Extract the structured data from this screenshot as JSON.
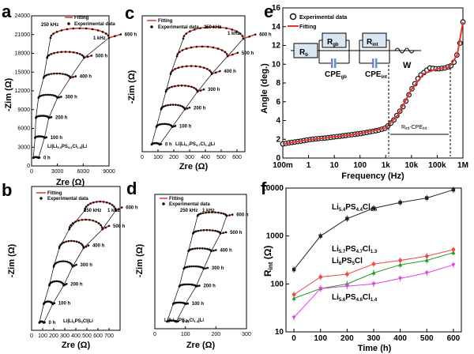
{
  "figure": {
    "panel_labels": [
      "a",
      "b",
      "c",
      "d",
      "e",
      "f"
    ]
  },
  "colors": {
    "fit": "#e8332a",
    "marker": "#111111",
    "circle_fill": "#ffffff",
    "f_black": "#222222",
    "f_red": "#f04a44",
    "f_green": "#1e9b28",
    "f_magenta": "#e23fe0"
  },
  "chart_data": [
    {
      "panel": "a",
      "type": "scatter",
      "xlabel": "Zre (Ω)",
      "ylabel": "-Zim (Ω)",
      "xlim": [
        0,
        9000
      ],
      "ylim": [
        0,
        24000
      ],
      "x_ticks": [
        "0",
        "3000",
        "6000",
        "9000"
      ],
      "y_ticks": [
        "0",
        "3000",
        "6000",
        "9000",
        "12000",
        "15000",
        "18000",
        "21000",
        "24000"
      ],
      "legend": [
        "Fitting",
        "Experimental data"
      ],
      "sample_label": "Li|Li5.4PS4.4Cl1.6|Li",
      "freq_labels": [
        "250 kHz",
        "1 kHz"
      ],
      "times": [
        "0 h",
        "100 h",
        "200 h",
        "300 h",
        "400 h",
        "500 h",
        "600 h"
      ],
      "offset_step": 3200,
      "arc_start": [
        200,
        400,
        500,
        800,
        1400,
        1800,
        2200
      ],
      "arc_diameter": [
        600,
        1100,
        1500,
        2200,
        3100,
        4300,
        6800
      ]
    },
    {
      "panel": "b",
      "type": "scatter",
      "xlabel": "Zre (Ω)",
      "ylabel": "-Zim (Ω)",
      "xlim": [
        0,
        800
      ],
      "ylim": [
        0,
        1000
      ],
      "x_ticks": [
        "0",
        "100",
        "200",
        "300",
        "400",
        "500",
        "600",
        "700"
      ],
      "y_ticks": [],
      "legend": [
        "Fitting",
        "Experimental data"
      ],
      "sample_label": "Li|Li6PS5Cl|Li",
      "freq_labels": [
        "250 kHz",
        "1 kHz"
      ],
      "times": [
        "0 h",
        "100 h",
        "200 h",
        "300 h",
        "400 h",
        "500 h",
        "600 h"
      ],
      "offset_step": 130,
      "arc_start": [
        70,
        110,
        160,
        200,
        250,
        340,
        480
      ],
      "arc_diameter": [
        40,
        80,
        130,
        170,
        220,
        300,
        280
      ]
    },
    {
      "panel": "c",
      "type": "scatter",
      "xlabel": "Zre (Ω)",
      "ylabel": "-Zim (Ω)",
      "xlim": [
        0,
        650
      ],
      "ylim": [
        0,
        1000
      ],
      "x_ticks": [
        "0",
        "100",
        "200",
        "300",
        "400",
        "500",
        "600"
      ],
      "y_ticks": [],
      "legend": [
        "Fitting",
        "Experimental data"
      ],
      "sample_label": "Li|Li5.7PS4.7Cl1.3|Li",
      "freq_labels": [
        "250 kHz",
        "1 kHz"
      ],
      "times": [
        "0 h",
        "100 h",
        "200 h",
        "300 h",
        "400 h",
        "500 h",
        "600 h"
      ],
      "offset_step": 130,
      "arc_start": [
        60,
        90,
        120,
        150,
        180,
        220,
        260
      ],
      "arc_diameter": [
        50,
        100,
        150,
        200,
        260,
        320,
        380
      ]
    },
    {
      "panel": "d",
      "type": "scatter",
      "xlabel": "Zre (Ω)",
      "ylabel": "-Zim (Ω)",
      "xlim": [
        0,
        300
      ],
      "ylim": [
        0,
        800
      ],
      "x_ticks": [
        "0",
        "100",
        "200",
        "300"
      ],
      "y_ticks": [],
      "legend": [
        "Fitting",
        "Experimental data"
      ],
      "sample_label": "Li|Li5.6PS4.6Cl1.4|Li",
      "freq_labels": [
        "250 kHz",
        "1 kHz"
      ],
      "times": [
        "0 h",
        "100 h",
        "200 h",
        "300 h",
        "400 h",
        "500 h",
        "600 h"
      ],
      "offset_step": 105,
      "arc_start": [
        40,
        60,
        80,
        95,
        110,
        125,
        140
      ],
      "arc_diameter": [
        30,
        40,
        55,
        65,
        75,
        90,
        95
      ]
    },
    {
      "panel": "e",
      "type": "line",
      "xlabel": "Frequency (Hz)",
      "ylabel": "Angle (deg.)",
      "xscale": "log",
      "xlim": [
        0.1,
        1000000
      ],
      "ylim": [
        0,
        16
      ],
      "x_ticks": [
        "100m",
        "1",
        "10",
        "100",
        "1k",
        "10k",
        "100k",
        "1M"
      ],
      "y_ticks": [
        "0",
        "2",
        "4",
        "6",
        "8",
        "10",
        "12",
        "14",
        "16"
      ],
      "legend": [
        "Experimental data",
        "Fitting"
      ],
      "region_label": "Rint-CPEint",
      "circuit": {
        "rb": "Rb",
        "rgb": "Rgb",
        "rint": "Rint",
        "cpegb": "CPEgb",
        "cpeint": "CPEint",
        "w": "W"
      },
      "series": [
        {
          "name": "Experimental data",
          "x": [
            0.1,
            0.2,
            0.5,
            1,
            2,
            5,
            10,
            20,
            50,
            100,
            200,
            500,
            1000,
            2000,
            5000,
            10000,
            20000,
            50000,
            100000,
            200000,
            400000,
            700000,
            1000000
          ],
          "y": [
            1.5,
            1.65,
            1.8,
            1.95,
            2.05,
            2.15,
            2.25,
            2.35,
            2.5,
            2.6,
            2.75,
            2.95,
            3.2,
            4.0,
            5.6,
            7.3,
            8.7,
            9.6,
            9.5,
            9.6,
            9.9,
            11.5,
            14.5
          ]
        },
        {
          "name": "Fitting",
          "x": [
            0.1,
            1,
            10,
            100,
            1000,
            3000,
            10000,
            30000,
            100000,
            300000,
            600000,
            1000000
          ],
          "y": [
            1.5,
            1.95,
            2.25,
            2.6,
            3.2,
            4.6,
            7.3,
            9.0,
            9.5,
            9.7,
            11.0,
            14.5
          ]
        }
      ]
    },
    {
      "panel": "f",
      "type": "line",
      "xlabel": "Time (h)",
      "ylabel": "Rint (Ω)",
      "yscale": "log",
      "xlim": [
        -30,
        630
      ],
      "ylim": [
        10,
        10000
      ],
      "x_ticks": [
        "0",
        "100",
        "200",
        "300",
        "400",
        "500",
        "600"
      ],
      "y_ticks": [
        "10",
        "100",
        "1000",
        "10000"
      ],
      "categories_x": [
        0,
        100,
        200,
        300,
        400,
        500,
        600
      ],
      "series": [
        {
          "name": "Li5.4PS4.4Cl1.6",
          "color_key": "f_black",
          "y": [
            200,
            1000,
            2300,
            3800,
            5000,
            6200,
            9200
          ]
        },
        {
          "name": "Li5.7PS4.7Cl1.3",
          "color_key": "f_green",
          "y": [
            50,
            80,
            100,
            170,
            250,
            310,
            450
          ]
        },
        {
          "name": "Li6PS5Cl",
          "color_key": "f_red",
          "y": [
            60,
            140,
            160,
            260,
            310,
            380,
            520
          ]
        },
        {
          "name": "Li5.6PS4.6Cl1.4",
          "color_key": "f_magenta",
          "y": [
            20,
            80,
            90,
            100,
            130,
            170,
            250
          ]
        }
      ],
      "labels": {
        "black_a": "Li",
        "black_b": "5.4",
        "black_c": "PS",
        "black_d": "4.4",
        "black_e": "Cl",
        "black_f": "1.6",
        "green_a": "Li",
        "green_b": "5.7",
        "green_c": "PS",
        "green_d": "4.7",
        "green_e": "Cl",
        "green_f": "1.3",
        "red_a": "Li",
        "red_b": "6",
        "red_c": "PS",
        "red_d": "5",
        "red_e": "Cl",
        "mag_a": "Li",
        "mag_b": "5.6",
        "mag_c": "PS",
        "mag_d": "4.6",
        "mag_e": "Cl",
        "mag_f": "1.4"
      }
    }
  ]
}
